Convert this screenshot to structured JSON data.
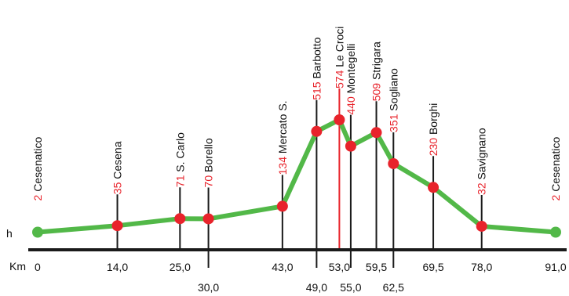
{
  "chart_data": {
    "type": "line",
    "title": "",
    "xlabel": "Km",
    "ylabel": "h",
    "xlim": [
      0,
      91
    ],
    "ylim": [
      0,
      574
    ],
    "series": [
      {
        "values": [
          2,
          35,
          71,
          70,
          134,
          515,
          574,
          440,
          509,
          351,
          230,
          32,
          2
        ]
      }
    ],
    "points": [
      {
        "km": 0,
        "km_label": "0",
        "alt": 2,
        "alt_label": "2",
        "name": "Cesenatico"
      },
      {
        "km": 14.0,
        "km_label": "14,0",
        "alt": 35,
        "alt_label": "35",
        "name": "Cesena"
      },
      {
        "km": 25.0,
        "km_label": "25,0",
        "alt": 71,
        "alt_label": "71",
        "name": "S. Carlo"
      },
      {
        "km": 30.0,
        "km_label": "30,0",
        "alt": 70,
        "alt_label": "70",
        "name": "Borello"
      },
      {
        "km": 43.0,
        "km_label": "43,0",
        "alt": 134,
        "alt_label": "134",
        "name": "Mercato S."
      },
      {
        "km": 49.0,
        "km_label": "49,0",
        "alt": 515,
        "alt_label": "515",
        "name": "Barbotto"
      },
      {
        "km": 53.0,
        "km_label": "53,0",
        "alt": 574,
        "alt_label": "574",
        "name": "Le Croci",
        "highlight": true
      },
      {
        "km": 55.0,
        "km_label": "55,0",
        "alt": 440,
        "alt_label": "440",
        "name": "Montegelli"
      },
      {
        "km": 59.5,
        "km_label": "59,5",
        "alt": 509,
        "alt_label": "509",
        "name": "Strigara"
      },
      {
        "km": 62.5,
        "km_label": "62,5",
        "alt": 351,
        "alt_label": "351",
        "name": "Sogliano"
      },
      {
        "km": 69.5,
        "km_label": "69,5",
        "alt": 230,
        "alt_label": "230",
        "name": "Borghi"
      },
      {
        "km": 78.0,
        "km_label": "78,0",
        "alt": 32,
        "alt_label": "32",
        "name": "Savignano"
      },
      {
        "km": 91.0,
        "km_label": "91,0",
        "alt": 2,
        "alt_label": "2",
        "name": "Cesenatico"
      }
    ],
    "colors": {
      "line": "#52b848",
      "point": "#e8232b",
      "altitude_text": "#e8232b",
      "axis": "#1a1a1a"
    }
  }
}
